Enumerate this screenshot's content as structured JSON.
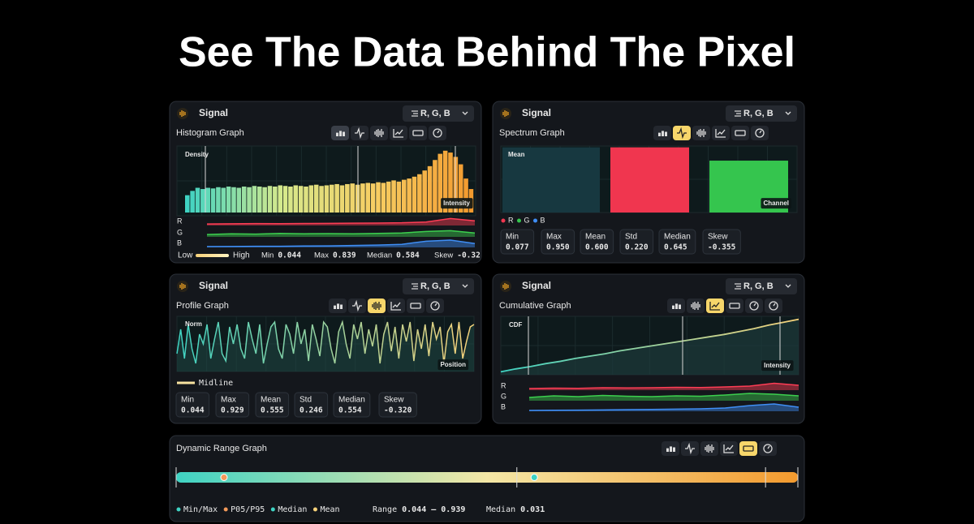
{
  "title": "See The Data Behind The Pixel",
  "histogram": {
    "header": "Signal",
    "channels": "R, G, B",
    "subtitle": "Histogram Graph",
    "y_label": "Density",
    "x_label": "Intensity",
    "ylim": [
      0,
      1.05
    ],
    "colors": [
      "#3fd3c3",
      "#d6e98c",
      "#f7cd62",
      "#f39a2e"
    ],
    "values": [
      0.28,
      0.35,
      0.4,
      0.38,
      0.4,
      0.39,
      0.41,
      0.4,
      0.42,
      0.41,
      0.4,
      0.42,
      0.41,
      0.43,
      0.42,
      0.41,
      0.43,
      0.42,
      0.44,
      0.43,
      0.42,
      0.44,
      0.43,
      0.42,
      0.44,
      0.45,
      0.43,
      0.44,
      0.45,
      0.46,
      0.44,
      0.46,
      0.47,
      0.45,
      0.47,
      0.48,
      0.47,
      0.49,
      0.48,
      0.5,
      0.52,
      0.5,
      0.53,
      0.55,
      0.58,
      0.62,
      0.68,
      0.75,
      0.85,
      0.95,
      1.0,
      0.97,
      0.9,
      0.78,
      0.55,
      0.38
    ],
    "series": [
      {
        "name": "R",
        "color": "#ff3d55",
        "values": [
          0.2,
          0.22,
          0.25,
          0.24,
          0.26,
          0.28,
          0.3,
          0.32,
          0.35,
          0.45,
          0.9,
          0.6
        ]
      },
      {
        "name": "G",
        "color": "#3ccf4e",
        "values": [
          0.3,
          0.4,
          0.35,
          0.45,
          0.4,
          0.42,
          0.4,
          0.45,
          0.5,
          0.7,
          0.8,
          0.5
        ]
      },
      {
        "name": "B",
        "color": "#3f8ef5",
        "values": [
          0.1,
          0.12,
          0.15,
          0.15,
          0.18,
          0.2,
          0.25,
          0.3,
          0.4,
          0.8,
          0.95,
          0.5
        ]
      }
    ],
    "low": "Low",
    "high": "High",
    "stats": [
      {
        "label": "Min",
        "value": "0.044"
      },
      {
        "label": "Max",
        "value": "0.839"
      },
      {
        "label": "Median",
        "value": "0.584"
      },
      {
        "label": "Skew",
        "value": "-0.32"
      }
    ]
  },
  "spectrum": {
    "header": "Signal",
    "channels": "R, G, B",
    "subtitle": "Spectrum Graph",
    "y_label": "Mean",
    "x_label": "Channel",
    "ylim": [
      0,
      1
    ],
    "series": [
      {
        "name": "R",
        "color": "#f0364f",
        "value": 0.98
      },
      {
        "name": "G",
        "color": "#35c54e",
        "value": 0.78
      },
      {
        "name": "B",
        "color": "#173840",
        "value": 0.98
      }
    ],
    "legend_colors": [
      "#f0364f",
      "#35c54e",
      "#3f8ef5"
    ],
    "stats": [
      {
        "label": "Min",
        "value": "0.077"
      },
      {
        "label": "Max",
        "value": "0.950"
      },
      {
        "label": "Mean",
        "value": "0.600"
      },
      {
        "label": "Std",
        "value": "0.220"
      },
      {
        "label": "Median",
        "value": "0.645"
      },
      {
        "label": "Skew",
        "value": "-0.355"
      }
    ]
  },
  "profile": {
    "header": "Signal",
    "channels": "R, G, B",
    "subtitle": "Profile Graph",
    "y_label": "Norm",
    "x_label": "Position",
    "legend": "Midline",
    "ylim": [
      0,
      1
    ],
    "values": [
      0.3,
      0.8,
      0.2,
      0.9,
      0.4,
      0.1,
      0.7,
      0.5,
      0.9,
      0.2,
      0.6,
      0.95,
      0.3,
      0.15,
      0.85,
      0.5,
      0.9,
      0.4,
      0.2,
      0.95,
      0.6,
      0.3,
      0.9,
      0.1,
      0.5,
      0.85,
      0.95,
      0.4,
      0.2,
      0.9,
      0.7,
      0.3,
      0.95,
      0.5,
      0.8,
      0.15,
      0.9,
      0.6,
      0.25,
      0.95,
      0.85,
      0.4,
      0.1,
      0.75,
      0.95,
      0.5,
      0.2,
      0.9,
      0.6,
      0.95,
      0.3,
      0.8,
      0.45,
      0.9,
      0.1,
      0.7,
      0.95,
      0.35,
      0.85,
      0.2,
      0.9,
      0.55,
      0.95,
      0.15,
      0.8,
      0.4,
      0.9,
      0.25,
      0.95,
      0.6,
      0.85,
      0.1,
      0.75,
      0.9,
      0.3,
      0.95,
      0.2,
      0.55,
      0.85,
      0.9
    ],
    "stats": [
      {
        "label": "Min",
        "value": "0.044"
      },
      {
        "label": "Max",
        "value": "0.929"
      },
      {
        "label": "Mean",
        "value": "0.555"
      },
      {
        "label": "Std",
        "value": "0.246"
      },
      {
        "label": "Median",
        "value": "0.554"
      },
      {
        "label": "Skew",
        "value": "-0.320"
      }
    ]
  },
  "cumulative": {
    "header": "Signal",
    "channels": "R, G, B",
    "subtitle": "Cumulative Graph",
    "y_label": "CDF",
    "x_label": "Intensity",
    "ylim": [
      0,
      1
    ],
    "values": [
      0.05,
      0.1,
      0.14,
      0.19,
      0.23,
      0.28,
      0.32,
      0.36,
      0.41,
      0.45,
      0.49,
      0.53,
      0.57,
      0.61,
      0.65,
      0.69,
      0.74,
      0.79,
      0.85,
      0.9,
      0.95
    ],
    "series": [
      {
        "name": "R",
        "color": "#ff3d55",
        "values": [
          0.2,
          0.25,
          0.22,
          0.3,
          0.28,
          0.3,
          0.35,
          0.33,
          0.4,
          0.5,
          0.85,
          0.6
        ]
      },
      {
        "name": "G",
        "color": "#3ccf4e",
        "values": [
          0.4,
          0.6,
          0.5,
          0.65,
          0.55,
          0.5,
          0.6,
          0.55,
          0.7,
          0.9,
          0.8,
          0.6
        ]
      },
      {
        "name": "B",
        "color": "#3f8ef5",
        "values": [
          0.1,
          0.12,
          0.14,
          0.16,
          0.2,
          0.22,
          0.26,
          0.3,
          0.4,
          0.7,
          0.9,
          0.5
        ]
      }
    ]
  },
  "dynamic_range": {
    "subtitle": "Dynamic Range Graph",
    "xlim": [
      0,
      1
    ],
    "colors": [
      "#3fd3c3",
      "#f4e7a6",
      "#f39a2e"
    ],
    "guides": [
      0.548,
      0.948
    ],
    "markers": [
      {
        "value": 0.077,
        "color": "#f39a5a"
      },
      {
        "value": 0.576,
        "color": "#3fd3c3"
      }
    ],
    "legend": [
      {
        "label": "Min/Max",
        "color": "#3fd3c3"
      },
      {
        "label": "P05/P95",
        "color": "#f39a5a"
      },
      {
        "label": "Median",
        "color": "#3fd3c3"
      },
      {
        "label": "Mean",
        "color": "#f7d27a"
      }
    ],
    "range": {
      "label": "Range",
      "value": "0.044 – 0.939"
    },
    "median": {
      "label": "Median",
      "value": "0.031"
    }
  }
}
